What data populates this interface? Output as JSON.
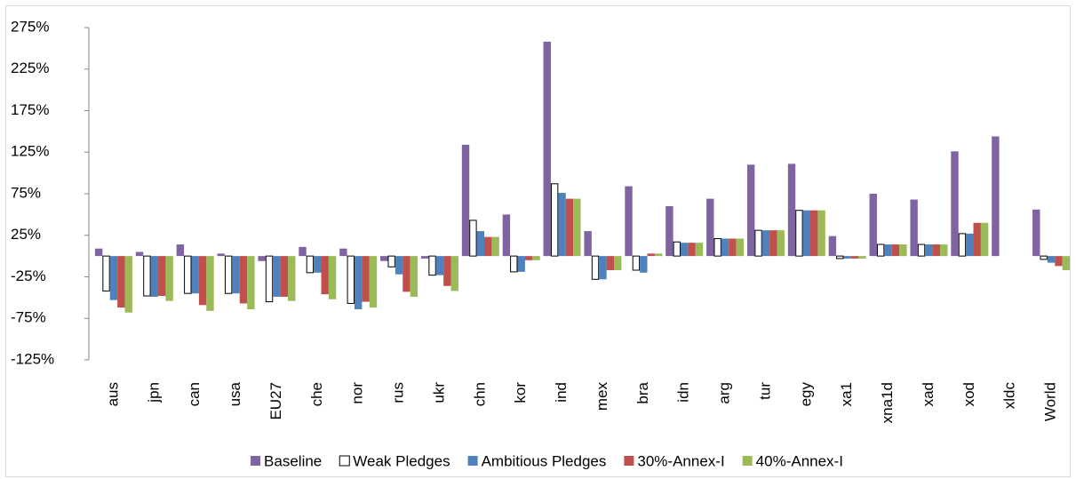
{
  "chart_data": {
    "type": "bar",
    "categories": [
      "aus",
      "jpn",
      "can",
      "usa",
      "EU27",
      "che",
      "nor",
      "rus",
      "ukr",
      "chn",
      "kor",
      "ind",
      "mex",
      "bra",
      "idn",
      "arg",
      "tur",
      "egy",
      "xa1",
      "xna1d",
      "xad",
      "xod",
      "xldc",
      "World"
    ],
    "series": [
      {
        "name": "Baseline",
        "color": "#8064a2",
        "values": [
          9,
          5,
          14,
          3,
          -6,
          11,
          9,
          -6,
          -3,
          134,
          50,
          258,
          30,
          84,
          60,
          69,
          110,
          111,
          24,
          75,
          68,
          126,
          144,
          56
        ]
      },
      {
        "name": "Weak Pledges",
        "color": "#ffffff",
        "values": [
          -42,
          -48,
          -45,
          -45,
          -55,
          -20,
          -57,
          -13,
          -23,
          43,
          -19,
          87,
          -28,
          -17,
          17,
          21,
          31,
          55,
          -3,
          14,
          14,
          27,
          null,
          -4
        ]
      },
      {
        "name": "Ambitious Pledges",
        "color": "#4f81bd",
        "values": [
          -53,
          -49,
          -45,
          -45,
          -49,
          -20,
          -64,
          -22,
          -23,
          30,
          -19,
          76,
          -28,
          -20,
          16,
          21,
          31,
          55,
          -3,
          14,
          14,
          27,
          null,
          -8
        ]
      },
      {
        "name": "30%-Annex-I",
        "color": "#c0504d",
        "values": [
          -62,
          -48,
          -59,
          -57,
          -49,
          -46,
          -55,
          -43,
          -36,
          23,
          -5,
          69,
          -17,
          3,
          16,
          21,
          31,
          55,
          -3,
          14,
          14,
          40,
          null,
          -12
        ]
      },
      {
        "name": "40%-Annex-I",
        "color": "#9bbb59",
        "values": [
          -68,
          -54,
          -66,
          -64,
          -54,
          -52,
          -62,
          -49,
          -42,
          23,
          -5,
          69,
          -17,
          3,
          16,
          21,
          31,
          55,
          -3,
          14,
          14,
          40,
          null,
          -17
        ]
      }
    ],
    "ylim": [
      -125,
      275
    ],
    "yticks": [
      {
        "value": -125,
        "label": "-125%"
      },
      {
        "value": -75,
        "label": "-75%"
      },
      {
        "value": -25,
        "label": "-25%"
      },
      {
        "value": 25,
        "label": "25%"
      },
      {
        "value": 75,
        "label": "75%"
      },
      {
        "value": 125,
        "label": "125%"
      },
      {
        "value": 175,
        "label": "175%"
      },
      {
        "value": 225,
        "label": "225%"
      },
      {
        "value": 275,
        "label": "275%"
      }
    ],
    "legend": "bottom"
  }
}
